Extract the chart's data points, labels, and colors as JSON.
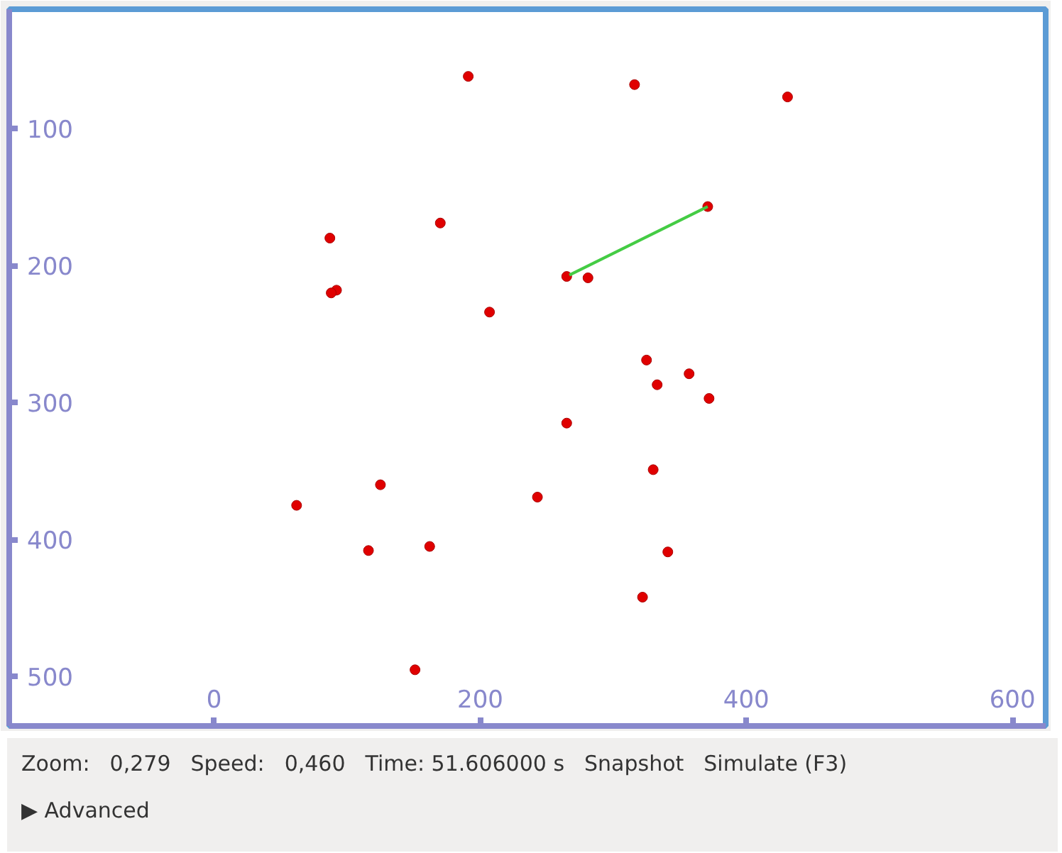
{
  "chart_data": {
    "type": "scatter",
    "x": [
      191,
      316,
      431,
      371,
      170,
      87,
      265,
      281,
      92,
      88,
      207,
      325,
      357,
      333,
      372,
      265,
      330,
      125,
      243,
      62,
      162,
      116,
      341,
      322,
      151
    ],
    "xlim": [
      -154,
      625
    ],
    "xticks": [
      0,
      200,
      400,
      600
    ],
    "ylim": [
      536,
      13
    ],
    "yticks": [
      100,
      200,
      300,
      400,
      500
    ],
    "series": [
      {
        "marker": "circle",
        "color": "#e00000",
        "values": [
          62,
          68,
          77,
          157,
          169,
          180,
          208,
          209,
          218,
          220,
          234,
          269,
          279,
          287,
          297,
          315,
          349,
          360,
          369,
          375,
          405,
          408,
          409,
          442,
          495
        ]
      },
      {
        "type": "line",
        "marker": "none",
        "color": "#44cc44",
        "x": [
          371,
          267
        ],
        "values": [
          157,
          207
        ]
      }
    ],
    "grid": false,
    "annotations": [
      "Zoom:",
      "0,279",
      "Speed:",
      "0,460",
      "Time: 51.606000 s",
      "Snapshot",
      "Simulate (F3)",
      "▶ Advanced"
    ]
  }
}
